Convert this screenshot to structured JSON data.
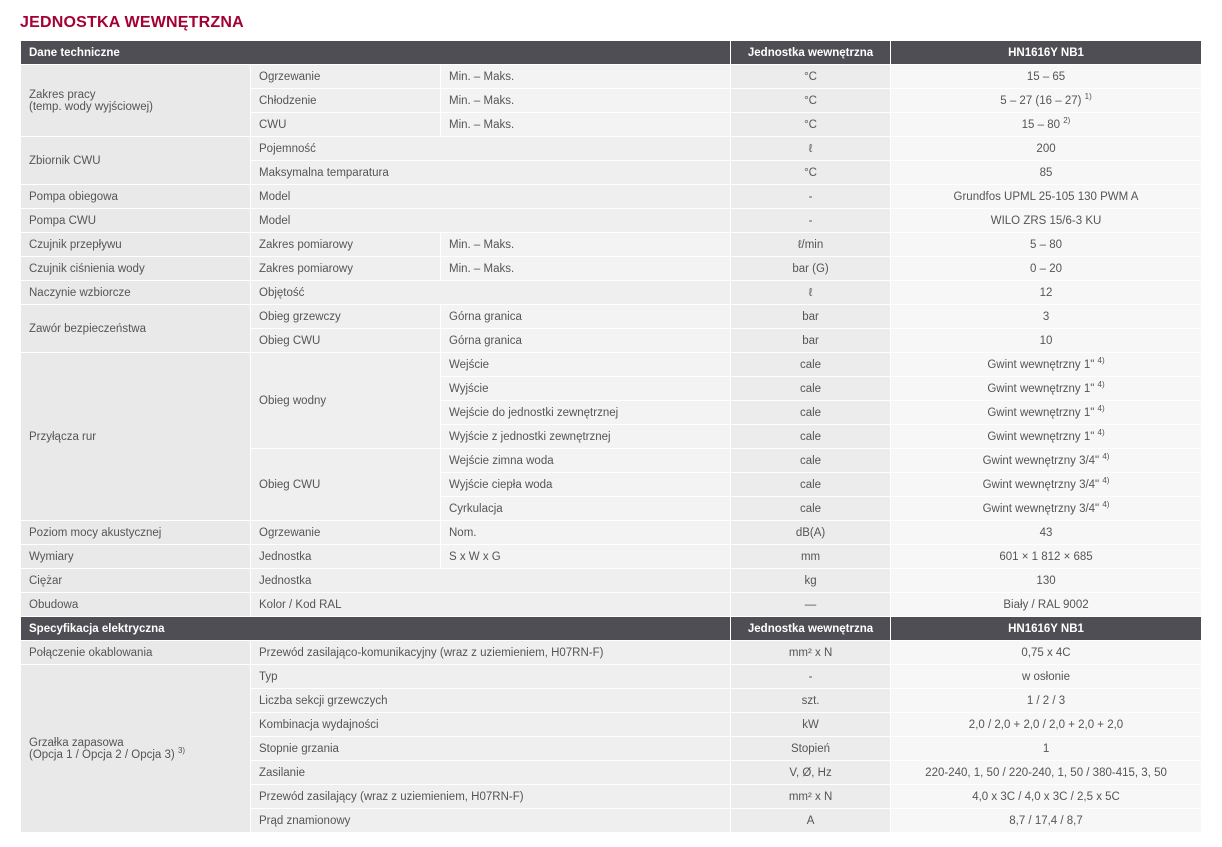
{
  "title": "JEDNOSTKA WEWNĘTRZNA",
  "headers": {
    "sec1_left": "Dane techniczne",
    "unit_col": "Jednostka wewnętrzna",
    "model": "HN1616Y NB1",
    "sec2_left": "Specyfikacja elektryczna"
  },
  "rows": {
    "zakres_label": "Zakres pracy\n(temp. wody wyjściowej)",
    "ogrzewanie": "Ogrzewanie",
    "chlodzenie": "Chłodzenie",
    "cwu": "CWU",
    "minmaks": "Min. – Maks.",
    "degC": "°C",
    "r1v": "15 – 65",
    "r2v_base": "5 – 27 (16 – 27)",
    "r2v_sup": "1)",
    "r3v_base": "15 – 80",
    "r3v_sup": "2)",
    "zbiornik": "Zbiornik CWU",
    "pojemnosc": "Pojemność",
    "litr": "ℓ",
    "zb1v": "200",
    "maxtemp": "Maksymalna temparatura",
    "zb2v": "85",
    "pompa_obiegowa": "Pompa obiegowa",
    "pompa_cwu": "Pompa CWU",
    "model_lbl": "Model",
    "dash": "-",
    "po_v": "Grundfos UPML 25-105 130 PWM A",
    "pc_v": "WILO ZRS 15/6-3 KU",
    "czujnik_przeplywu": "Czujnik przepływu",
    "czujnik_cisnienia": "Czujnik ciśnienia wody",
    "zakres_pom": "Zakres pomiarowy",
    "lmin": "ℓ/min",
    "barG": "bar (G)",
    "cp_v": "5 – 80",
    "cc_v": "0 – 20",
    "naczynie": "Naczynie wzbiorcze",
    "objetosc": "Objętość",
    "nw_v": "12",
    "zawor": "Zawór bezpieczeństwa",
    "obieg_grzewczy": "Obieg grzewczy",
    "obieg_cwu": "Obieg CWU",
    "gorna_granica": "Górna granica",
    "bar": "bar",
    "zg_v": "3",
    "zc_v": "10",
    "przylacza": "Przyłącza rur",
    "obieg_wodny": "Obieg wodny",
    "wejscie": "Wejście",
    "wyjscie": "Wyście",
    "wyjscie_fix": "Wyjście",
    "wejscie_jedn": "Wejście do jednostki zewnętrznej",
    "wyjscie_jedn": "Wyjście z jednostki zewnętrznej",
    "wejscie_zimna": "Wejście zimna woda",
    "wyjscie_ciepla": "Wyjście ciepła woda",
    "cyrkulacja": "Cyrkulacja",
    "cale": "cale",
    "gw1_base": "Gwint wewnętrzny 1\"",
    "gw34_base": "Gwint wewnętrzny 3/4\"",
    "gw_sup": "4)",
    "poziom_mocy": "Poziom mocy akustycznej",
    "nom": "Nom.",
    "dBA": "dB(A)",
    "pm_v": "43",
    "wymiary": "Wymiary",
    "jednostka": "Jednostka",
    "swg": "S x W x G",
    "mm": "mm",
    "wy_v": "601 × 1 812 × 685",
    "ciezar": "Ciężar",
    "kg": "kg",
    "ci_v": "130",
    "obudowa": "Obudowa",
    "kolor_ral": "Kolor / Kod RAL",
    "mdash": "—",
    "ob_v": "Biały / RAL 9002",
    "polaczenie": "Połączenie okablowania",
    "przewod_kom": "Przewód zasilająco-komunikacyjny (wraz z uziemieniem, H07RN-F)",
    "mm2N": "mm² x N",
    "pk_v": "0,75 x 4C",
    "grzalka_l1": "Grzałka zapasowa",
    "grzalka_l2_base": "(Opcja 1 / Opcja 2 / Opcja 3)",
    "grzalka_l2_sup": "3)",
    "typ": "Typ",
    "typ_v": "w osłonie",
    "liczba_sekcji": "Liczba sekcji grzewczych",
    "szt": "szt.",
    "ls_v": "1 / 2 / 3",
    "komb_wyd": "Kombinacja wydajności",
    "kW": "kW",
    "kw_v": "2,0 / 2,0 + 2,0 / 2,0 + 2,0 + 2,0",
    "stopnie": "Stopnie grzania",
    "stopien": "Stopień",
    "st_v": "1",
    "zasilanie": "Zasilanie",
    "vohz": "V, Ø, Hz",
    "za_v": "220-240, 1, 50 / 220-240, 1, 50 / 380-415, 3, 50",
    "przewod_zas": "Przewód zasilający (wraz z uziemieniem, H07RN-F)",
    "pz_v": "4,0 x 3C / 4,0 x 3C / 2,5 x 5C",
    "prad": "Prąd znamionowy",
    "A": "A",
    "pr_v": "8,7 / 17,4 / 8,7"
  }
}
